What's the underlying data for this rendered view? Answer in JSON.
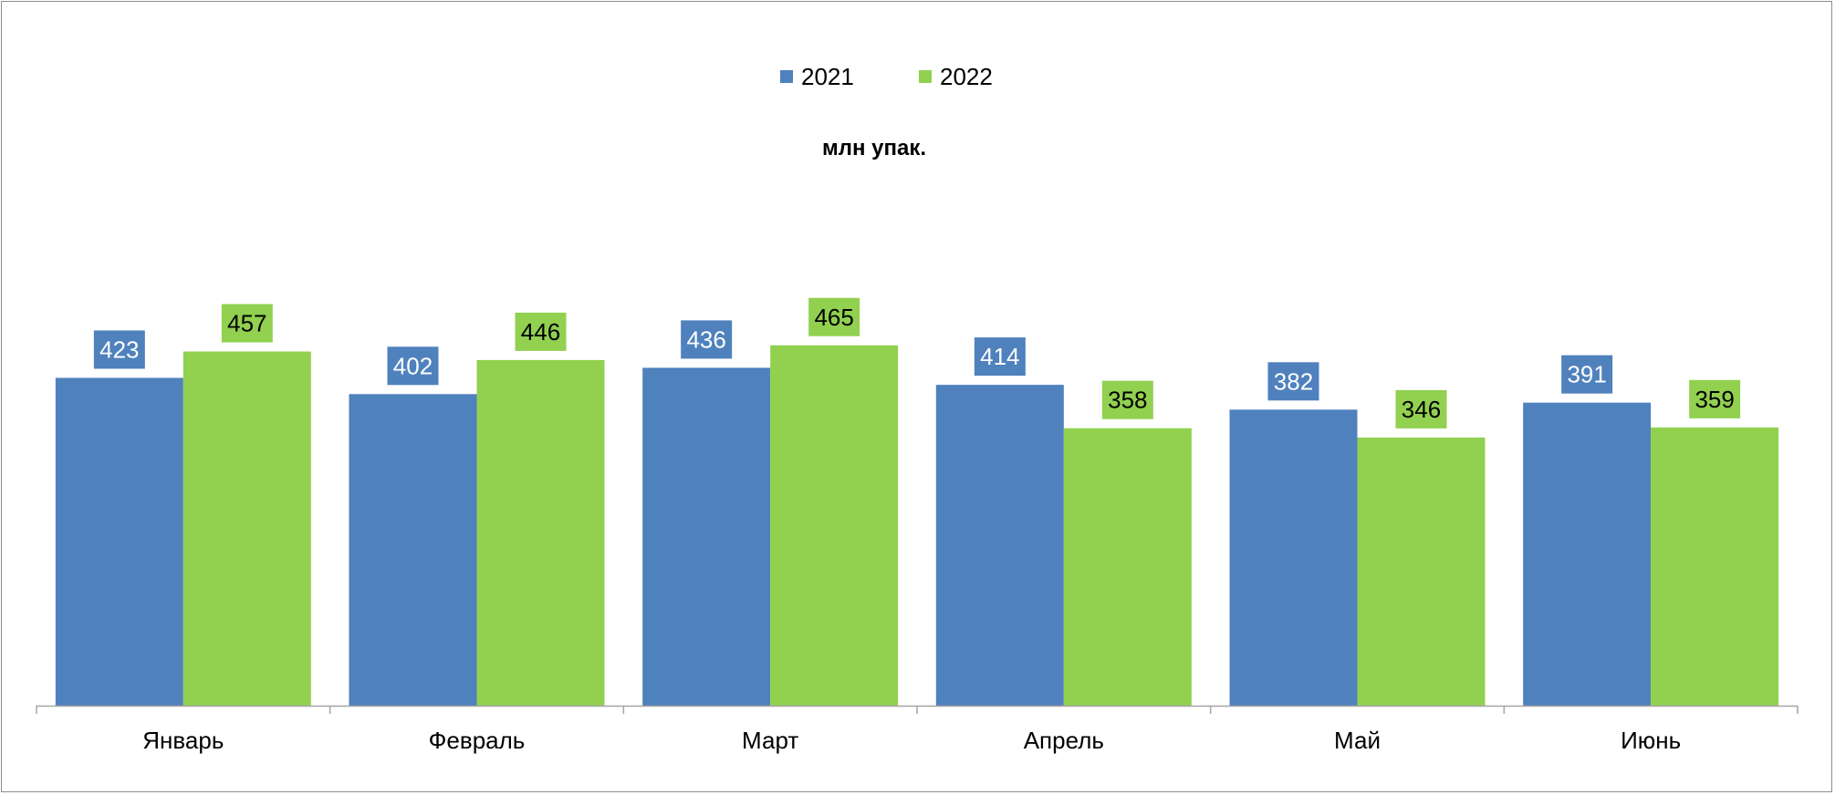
{
  "chart_data": {
    "type": "bar",
    "unit_label": "млн упак.",
    "categories": [
      "Январь",
      "Февраль",
      "Март",
      "Апрель",
      "Май",
      "Июнь"
    ],
    "series": [
      {
        "name": "2021",
        "color": "#4f81bd",
        "label_text_color": "#ffffff",
        "values": [
          423,
          402,
          436,
          414,
          382,
          391
        ]
      },
      {
        "name": "2022",
        "color": "#92d050",
        "label_text_color": "#000000",
        "values": [
          457,
          446,
          465,
          358,
          346,
          359
        ]
      }
    ],
    "ylim": [
      0,
      840
    ],
    "legend_position": "top-center",
    "grid": false
  }
}
